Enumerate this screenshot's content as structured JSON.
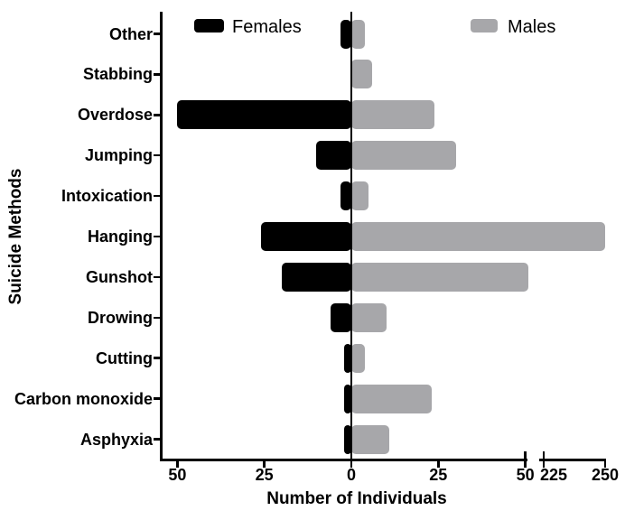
{
  "chart_data": {
    "type": "bar",
    "variant": "horizontal-diverging",
    "title": "",
    "xlabel": "Number of Individuals",
    "ylabel": "Suicide Methods",
    "categories": [
      "Other",
      "Stabbing",
      "Overdose",
      "Jumping",
      "Intoxication",
      "Hanging",
      "Gunshot",
      "Drowing",
      "Cutting",
      "Carbon monoxide",
      "Asphyxia"
    ],
    "series": [
      {
        "name": "Females",
        "side": "left",
        "color": "#000000",
        "values": [
          3,
          0,
          50,
          10,
          3,
          26,
          20,
          6,
          2,
          2,
          2
        ]
      },
      {
        "name": "Males",
        "side": "right",
        "color": "#a7a7aa",
        "values": [
          4,
          6,
          24,
          30,
          5,
          250,
          51,
          10,
          4,
          23,
          11
        ]
      }
    ],
    "x_axis": {
      "ticks": [
        {
          "value": 50,
          "side": "left",
          "label": "50"
        },
        {
          "value": 25,
          "side": "left",
          "label": "25"
        },
        {
          "value": 0,
          "side": "zero",
          "label": "0"
        },
        {
          "value": 25,
          "side": "right",
          "label": "25"
        },
        {
          "value": 50,
          "side": "right",
          "label": "50"
        },
        {
          "value": 225,
          "side": "right",
          "label": "225"
        },
        {
          "value": 250,
          "side": "right",
          "label": "250"
        }
      ],
      "axis_break": {
        "present": true,
        "between": [
          50,
          225
        ]
      }
    },
    "legend": {
      "position": "top",
      "entries": [
        {
          "label": "Females",
          "color": "#000000"
        },
        {
          "label": "Males",
          "color": "#a7a7aa"
        }
      ]
    },
    "grid": false,
    "background": "#ffffff"
  }
}
